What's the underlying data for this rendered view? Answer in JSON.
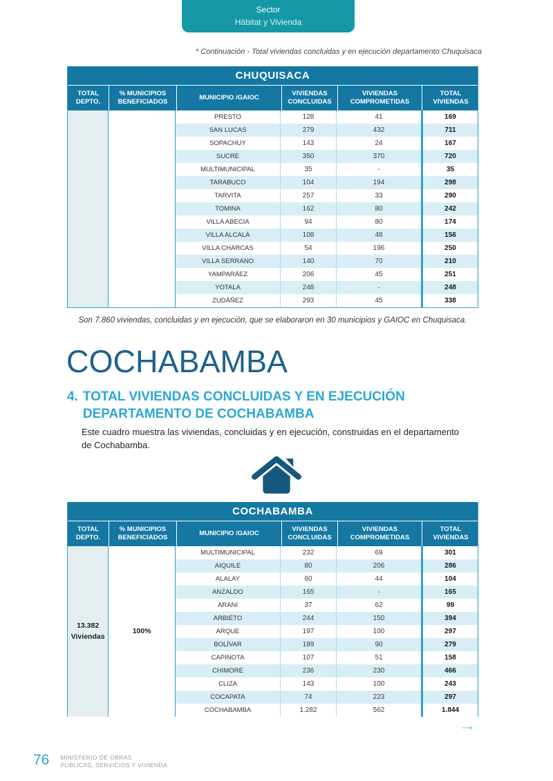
{
  "badge": {
    "line1": "Sector",
    "line2": "Hábitat y Vivienda"
  },
  "continuation_note": "* Continuación - Total viviendas concluidas y en ejecución departamento Chuquisaca",
  "tables": [
    {
      "title": "CHUQUISACA",
      "columns": [
        "TOTAL\nDEPTO.",
        "% MUNICIPIOS\nBENEFICIADOS",
        "MUNICIPIO /GAIOC",
        "VIVIENDAS\nCONCLUIDAS",
        "VIVIENDAS\nCOMPROMETIDAS",
        "TOTAL\nVIVIENDAS"
      ],
      "total_depto_line1": "",
      "total_depto_line2": "",
      "pct_beneficiados": "",
      "rows": [
        [
          "PRESTO",
          "128",
          "41",
          "169"
        ],
        [
          "SAN LUCAS",
          "279",
          "432",
          "711"
        ],
        [
          "SOPACHUY",
          "143",
          "24",
          "167"
        ],
        [
          "SUCRE",
          "350",
          "370",
          "720"
        ],
        [
          "MULTIMUNICIPAL",
          "35",
          "-",
          "35"
        ],
        [
          "TARABUCO",
          "104",
          "194",
          "298"
        ],
        [
          "TARVITA",
          "257",
          "33",
          "290"
        ],
        [
          "TOMINA",
          "162",
          "80",
          "242"
        ],
        [
          "VILLA ABECIA",
          "94",
          "80",
          "174"
        ],
        [
          "VILLA ALCALÁ",
          "108",
          "48",
          "156"
        ],
        [
          "VILLA CHARCAS",
          "54",
          "196",
          "250"
        ],
        [
          "VILLA SERRANO",
          "140",
          "70",
          "210"
        ],
        [
          "YAMPARÁEZ",
          "206",
          "45",
          "251"
        ],
        [
          "YOTALA",
          "248",
          "-",
          "248"
        ],
        [
          "ZUDÁÑEZ",
          "293",
          "45",
          "338"
        ]
      ]
    },
    {
      "title": "COCHABAMBA",
      "columns": [
        "TOTAL\nDEPTO.",
        "% MUNICIPIOS\nBENEFICIADOS",
        "MUNICIPIO /GAIOC",
        "VIVIENDAS\nCONCLUIDAS",
        "VIVIENDAS\nCOMPROMETIDAS",
        "TOTAL\nVIVIENDAS"
      ],
      "total_depto_line1": "13.382",
      "total_depto_line2": "Viviendas",
      "pct_beneficiados": "100%",
      "rows": [
        [
          "MULTIMUNICIPAL",
          "232",
          "69",
          "301"
        ],
        [
          "AIQUILE",
          "80",
          "206",
          "286"
        ],
        [
          "ALALAY",
          "60",
          "44",
          "104"
        ],
        [
          "ANZALDO",
          "165",
          "-",
          "165"
        ],
        [
          "ARANI",
          "37",
          "62",
          "99"
        ],
        [
          "ARBIETO",
          "244",
          "150",
          "394"
        ],
        [
          "ARQUE",
          "197",
          "100",
          "297"
        ],
        [
          "BOLÍVAR",
          "189",
          "90",
          "279"
        ],
        [
          "CAPINOTA",
          "107",
          "51",
          "158"
        ],
        [
          "CHIMORE",
          "236",
          "230",
          "466"
        ],
        [
          "CLIZA",
          "143",
          "100",
          "243"
        ],
        [
          "COCAPATA",
          "74",
          "223",
          "297"
        ],
        [
          "COCHABAMBA",
          "1.282",
          "562",
          "1.844"
        ]
      ]
    }
  ],
  "chuquisaca_note": "Son 7.860 viviendas, concluidas y en ejecución, que se elaboraron en 30 municipios y GAIOC en Chuquisaca.",
  "section": {
    "department_title": "COCHABAMBA",
    "heading_number": "4.",
    "heading_line1": "TOTAL VIVIENDAS CONCLUIDAS Y EN EJECUCIÓN",
    "heading_line2": "DEPARTAMENTO DE  COCHABAMBA",
    "paragraph": "Este cuadro muestra las viviendas, concluidas y en ejecución, construidas en el departamento de Cochabamba."
  },
  "arrow_next": "→",
  "footer": {
    "page_number": "76",
    "ministry": "MINISTERIO DE OBRAS\nPÚBLICAS, SERVICIOS Y VIVIENDA"
  },
  "colors": {
    "badge_teal": "#1598a6",
    "table_header_blue": "#1478a3",
    "row_stripe": "#d9edf6",
    "left_col_bg": "#e4eef1",
    "border_teal": "#2ba2c2",
    "dept_title_blue": "#1d6189",
    "section_heading_blue": "#2aa8d2",
    "arrow_teal": "#72c8da",
    "page_number_teal": "#2aa6c8"
  }
}
